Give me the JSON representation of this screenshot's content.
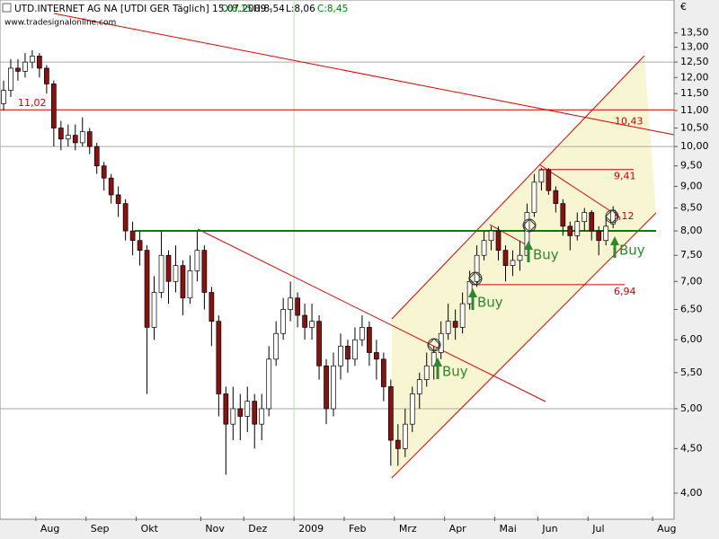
{
  "chart_data": {
    "type": "candlestick",
    "title": "UTD.INTERNET AG NA [UTDI GER  Täglich] 15.07.2009 -",
    "ohlc_labels": [
      "O:8,15",
      "H:8,54",
      "L:8,06",
      "C:8,45"
    ],
    "subtitle": "www.tradesignalonline.com",
    "y_label": "€",
    "log_scale": true,
    "ylim": [
      3.76,
      14.73
    ],
    "yticks": [
      {
        "value": 4,
        "label": "4,00"
      },
      {
        "value": 4.5,
        "label": "4,50"
      },
      {
        "value": 5,
        "label": "5,00"
      },
      {
        "value": 5.5,
        "label": "5,50"
      },
      {
        "value": 6,
        "label": "6,00"
      },
      {
        "value": 6.5,
        "label": "6,50"
      },
      {
        "value": 7,
        "label": "7,00"
      },
      {
        "value": 7.5,
        "label": "7,50"
      },
      {
        "value": 8,
        "label": "8,00"
      },
      {
        "value": 8.5,
        "label": "8,50"
      },
      {
        "value": 9,
        "label": "9,00"
      },
      {
        "value": 9.5,
        "label": "9,50"
      },
      {
        "value": 10,
        "label": "10,00"
      },
      {
        "value": 10.5,
        "label": "10,50"
      },
      {
        "value": 11,
        "label": "11,00"
      },
      {
        "value": 11.5,
        "label": "11,50"
      },
      {
        "value": 12,
        "label": "12,00"
      },
      {
        "value": 12.5,
        "label": "12,50"
      },
      {
        "value": 13,
        "label": "13,00"
      },
      {
        "value": 13.5,
        "label": "13,50"
      }
    ],
    "grid_values": [
      5,
      10,
      12.5
    ],
    "up_color": "#ffffff",
    "down_color": "#8b1010",
    "categories": [
      null,
      null,
      null,
      null,
      null,
      "Aug",
      null,
      null,
      null,
      null,
      null,
      null,
      "Sep",
      null,
      null,
      null,
      null,
      null,
      null,
      "Okt",
      null,
      null,
      null,
      null,
      null,
      null,
      null,
      null,
      "Nov",
      null,
      null,
      null,
      null,
      null,
      "Dez",
      null,
      null,
      null,
      null,
      null,
      null,
      "2009",
      null,
      null,
      null,
      null,
      null,
      null,
      "Feb",
      null,
      null,
      null,
      null,
      null,
      null,
      "Mrz",
      null,
      null,
      null,
      null,
      null,
      null,
      "Apr",
      null,
      null,
      null,
      null,
      null,
      null,
      "Mai",
      null,
      null,
      null,
      null,
      null,
      "Jun",
      null,
      null,
      null,
      null,
      null,
      null,
      "Jul",
      null,
      null,
      null,
      null,
      null,
      null,
      null,
      null,
      "Aug",
      null,
      null
    ],
    "open": [
      11.2,
      11.6,
      12.3,
      12.2,
      12.5,
      12.7,
      12.3,
      11.8,
      10.5,
      10.2,
      10.3,
      10.1,
      10.4,
      10.0,
      9.5,
      9.2,
      8.8,
      8.6,
      8.0,
      7.8,
      7.6,
      6.2,
      6.8,
      7.5,
      7.0,
      7.3,
      6.7,
      7.2,
      7.6,
      6.8,
      6.3,
      5.2,
      4.8,
      5.0,
      4.9,
      5.1,
      4.8,
      5.0,
      5.7,
      6.1,
      6.5,
      6.7,
      6.4,
      6.2,
      6.3,
      5.6,
      5.0,
      5.6,
      5.9,
      5.7,
      6.0,
      6.2,
      5.8,
      5.7,
      5.3,
      4.6,
      4.5,
      4.8,
      5.2,
      5.4,
      5.6,
      5.8,
      6.1,
      6.3,
      6.2,
      6.6,
      7.0,
      7.5,
      7.8,
      8.0,
      7.6,
      7.3,
      7.4,
      7.5,
      8.4,
      9.1,
      9.4,
      8.9,
      8.6,
      8.1,
      7.9,
      8.2,
      8.4,
      8.0,
      7.8,
      8.15,
      null,
      null,
      null,
      null,
      null,
      null,
      null,
      null
    ],
    "high": [
      11.9,
      12.6,
      12.6,
      12.8,
      12.9,
      12.8,
      12.4,
      11.9,
      10.7,
      10.6,
      10.6,
      10.8,
      10.5,
      10.1,
      9.6,
      9.3,
      9.0,
      8.7,
      8.2,
      8.0,
      7.7,
      7.1,
      8.0,
      7.6,
      7.7,
      7.4,
      7.5,
      8.0,
      7.7,
      6.9,
      6.4,
      5.3,
      5.3,
      5.2,
      5.3,
      5.2,
      5.2,
      5.9,
      6.3,
      6.7,
      7.0,
      6.8,
      6.6,
      6.6,
      6.4,
      5.7,
      5.8,
      6.1,
      6.0,
      6.2,
      6.4,
      6.3,
      6.0,
      5.8,
      5.4,
      4.8,
      5.0,
      5.3,
      5.5,
      5.8,
      5.9,
      6.3,
      6.6,
      6.5,
      6.8,
      7.2,
      7.7,
      8.0,
      8.1,
      8.1,
      7.7,
      7.6,
      7.8,
      8.6,
      9.3,
      9.45,
      9.45,
      9.0,
      8.7,
      8.2,
      8.4,
      8.5,
      8.45,
      8.1,
      8.3,
      8.54,
      null,
      null,
      null,
      null,
      null,
      null,
      null,
      null
    ],
    "low": [
      11.0,
      11.4,
      11.9,
      12.0,
      12.3,
      12.0,
      11.5,
      10.0,
      9.9,
      10.0,
      9.9,
      10.0,
      9.8,
      9.3,
      8.9,
      8.6,
      8.3,
      7.8,
      7.5,
      7.3,
      5.2,
      6.0,
      6.7,
      6.6,
      6.8,
      6.4,
      6.6,
      7.0,
      6.5,
      5.9,
      4.9,
      4.2,
      4.6,
      4.6,
      4.7,
      4.5,
      4.6,
      4.9,
      5.6,
      6.0,
      6.3,
      6.2,
      6.0,
      6.0,
      5.4,
      4.8,
      4.9,
      5.4,
      5.5,
      5.6,
      5.9,
      5.6,
      5.4,
      5.1,
      4.3,
      4.3,
      4.4,
      4.7,
      5.0,
      5.3,
      5.4,
      5.7,
      6.0,
      6.0,
      6.1,
      6.5,
      6.9,
      7.4,
      7.6,
      7.4,
      7.0,
      7.1,
      7.2,
      7.5,
      8.3,
      8.9,
      8.8,
      8.4,
      7.9,
      7.6,
      7.8,
      8.0,
      7.8,
      7.5,
      7.7,
      8.06,
      null,
      null,
      null,
      null,
      null,
      null,
      null,
      null
    ],
    "close": [
      11.6,
      12.3,
      12.2,
      12.5,
      12.7,
      12.3,
      11.8,
      10.5,
      10.2,
      10.3,
      10.1,
      10.4,
      10.0,
      9.5,
      9.2,
      8.8,
      8.6,
      8.0,
      7.8,
      7.6,
      6.2,
      6.8,
      7.5,
      7.0,
      7.3,
      6.7,
      7.2,
      7.6,
      6.8,
      6.3,
      5.2,
      4.8,
      5.0,
      4.9,
      5.1,
      4.8,
      5.0,
      5.7,
      6.1,
      6.5,
      6.7,
      6.4,
      6.2,
      6.3,
      5.6,
      5.0,
      5.6,
      5.9,
      5.7,
      6.0,
      6.2,
      5.8,
      5.7,
      5.3,
      4.6,
      4.5,
      4.8,
      5.2,
      5.4,
      5.6,
      5.8,
      6.1,
      6.3,
      6.2,
      6.6,
      7.0,
      7.5,
      7.8,
      8.0,
      7.6,
      7.3,
      7.4,
      7.5,
      8.4,
      9.1,
      9.4,
      8.9,
      8.6,
      8.1,
      7.9,
      8.2,
      8.4,
      8.0,
      7.8,
      8.1,
      8.45,
      null,
      null,
      null,
      null,
      null,
      null,
      null,
      null
    ],
    "levels": [
      {
        "value": 11.02,
        "label": "11,02",
        "color": "#cc0000"
      },
      {
        "value": 8,
        "color": "#008000"
      },
      {
        "value": 9.41,
        "label": "9,41",
        "color": "#cc0000"
      },
      {
        "value": 6.94,
        "label": "6,94",
        "color": "#cc0000"
      }
    ],
    "trend_labels": [
      {
        "value": 10.43,
        "label": "10,43"
      },
      {
        "value": 8.12,
        "label": "8,12"
      }
    ],
    "annotations": [
      "Buy",
      "Buy",
      "Buy",
      "Buy"
    ]
  }
}
